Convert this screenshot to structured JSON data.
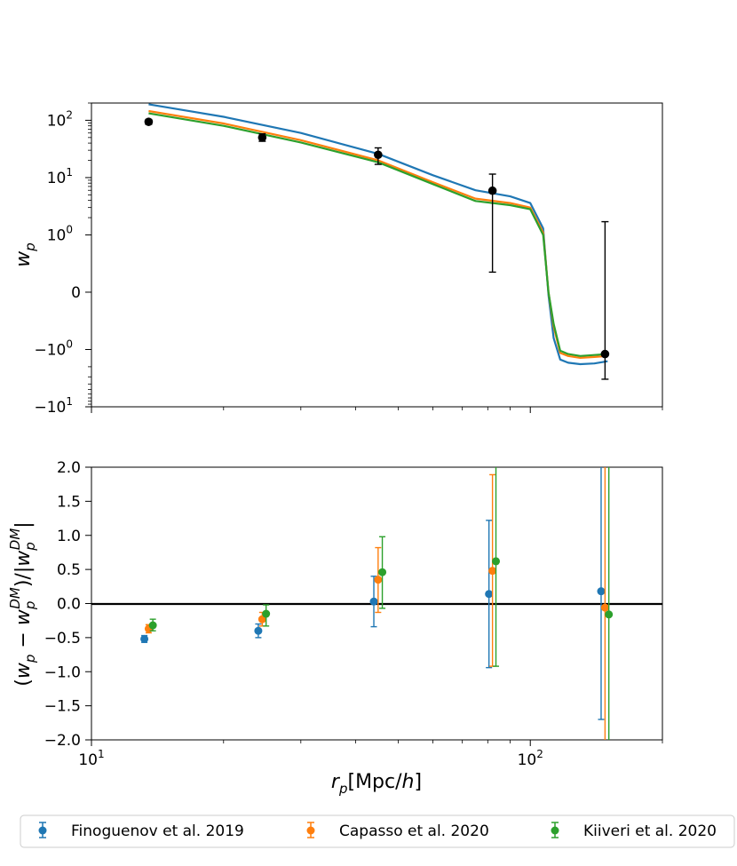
{
  "colors": {
    "blue": "#1f77b4",
    "orange": "#ff7f0e",
    "green": "#2ca02c",
    "black": "#000000"
  },
  "legend": {
    "items": [
      {
        "label": "Finoguenov et al. 2019",
        "color": "#1f77b4"
      },
      {
        "label": "Capasso et al. 2020",
        "color": "#ff7f0e"
      },
      {
        "label": "Kiiveri et al. 2020",
        "color": "#2ca02c"
      }
    ]
  },
  "chart_data": [
    {
      "type": "line",
      "panel": "top",
      "yscale": "symlog",
      "xscale": "log",
      "xlim": [
        10,
        200
      ],
      "ylim": [
        -10,
        200
      ],
      "ylabel": "w_p",
      "ytick_labels": [
        {
          "value": 100,
          "base": "10",
          "exp": "2"
        },
        {
          "value": 10,
          "base": "10",
          "exp": "1"
        },
        {
          "value": 1,
          "base": "10",
          "exp": "0"
        },
        {
          "value": 0,
          "base": "0",
          "exp": ""
        },
        {
          "value": -1,
          "base": "−10",
          "exp": "0"
        },
        {
          "value": -10,
          "base": "−10",
          "exp": "1"
        }
      ],
      "series": [
        {
          "name": "Finoguenov et al. 2019 model",
          "color": "#1f77b4",
          "x": [
            13.5,
            20,
            30,
            45,
            60,
            75,
            90,
            100,
            107,
            110,
            113,
            117,
            122,
            130,
            140,
            150
          ],
          "y": [
            190,
            115,
            60,
            26,
            11,
            6.0,
            4.7,
            3.6,
            1.3,
            -0.05,
            -0.8,
            -1.5,
            -1.7,
            -1.8,
            -1.75,
            -1.6
          ]
        },
        {
          "name": "Capasso et al. 2020 model",
          "color": "#ff7f0e",
          "x": [
            13.5,
            20,
            30,
            45,
            60,
            75,
            90,
            100,
            107,
            110,
            113,
            117,
            122,
            130,
            140,
            150
          ],
          "y": [
            145,
            88,
            45,
            20,
            8.3,
            4.3,
            3.6,
            3.0,
            1.1,
            0.0,
            -0.6,
            -1.15,
            -1.3,
            -1.4,
            -1.35,
            -1.3
          ]
        },
        {
          "name": "Kiiveri et al. 2020 model",
          "color": "#2ca02c",
          "x": [
            13.5,
            20,
            30,
            45,
            60,
            75,
            90,
            100,
            107,
            110,
            113,
            117,
            122,
            130,
            140,
            150
          ],
          "y": [
            132,
            80,
            41,
            18.5,
            7.7,
            3.9,
            3.3,
            2.8,
            1.0,
            0.0,
            -0.55,
            -1.05,
            -1.2,
            -1.3,
            -1.25,
            -1.2
          ]
        },
        {
          "name": "data",
          "color": "#000000",
          "kind": "errorbar",
          "x": [
            13.5,
            24.5,
            45,
            82,
            148
          ],
          "y": [
            94,
            50,
            25,
            5.9,
            -1.2
          ],
          "ylow": [
            85,
            43,
            17,
            0.35,
            -3.3
          ],
          "yhigh": [
            103,
            58,
            33,
            11.5,
            1.7
          ]
        }
      ]
    },
    {
      "type": "scatter",
      "panel": "bottom",
      "xscale": "log",
      "xlim": [
        10,
        200
      ],
      "ylim": [
        -2.0,
        2.0
      ],
      "xlabel": "r_p[Mpc/h]",
      "ylabel": "(w_p − w_p^DM)/|w_p^DM|",
      "ytick_labels": [
        "2.0",
        "1.5",
        "1.0",
        "0.5",
        "0.0",
        "−0.5",
        "−1.0",
        "−1.5",
        "−2.0"
      ],
      "ytick_values": [
        2.0,
        1.5,
        1.0,
        0.5,
        0.0,
        -0.5,
        -1.0,
        -1.5,
        -2.0
      ],
      "xtick_labels": [
        {
          "value": 10,
          "base": "10",
          "exp": "1"
        },
        {
          "value": 100,
          "base": "10",
          "exp": "2"
        }
      ],
      "hline": 0.0,
      "series": [
        {
          "name": "Finoguenov et al. 2019",
          "color": "#1f77b4",
          "x": [
            13.2,
            24.0,
            44.0,
            80.5,
            145.0
          ],
          "y": [
            -0.52,
            -0.4,
            0.03,
            0.14,
            0.18
          ],
          "ylow": [
            -0.57,
            -0.5,
            -0.34,
            -0.94,
            -1.7
          ],
          "yhigh": [
            -0.47,
            -0.3,
            0.4,
            1.22,
            2.1
          ]
        },
        {
          "name": "Capasso et al. 2020",
          "color": "#ff7f0e",
          "x": [
            13.5,
            24.5,
            45.0,
            82.0,
            148.0
          ],
          "y": [
            -0.37,
            -0.23,
            0.35,
            0.48,
            -0.06
          ],
          "ylow": [
            -0.43,
            -0.33,
            -0.13,
            -0.92,
            -2.1
          ],
          "yhigh": [
            -0.31,
            -0.13,
            0.82,
            1.89,
            2.1
          ]
        },
        {
          "name": "Kiiveri et al. 2020",
          "color": "#2ca02c",
          "x": [
            13.8,
            25.0,
            46.0,
            83.5,
            151.0
          ],
          "y": [
            -0.32,
            -0.15,
            0.46,
            0.62,
            -0.16
          ],
          "ylow": [
            -0.4,
            -0.33,
            -0.07,
            -0.92,
            -2.1
          ],
          "yhigh": [
            -0.23,
            -0.02,
            0.98,
            2.1,
            2.1
          ]
        }
      ]
    }
  ]
}
